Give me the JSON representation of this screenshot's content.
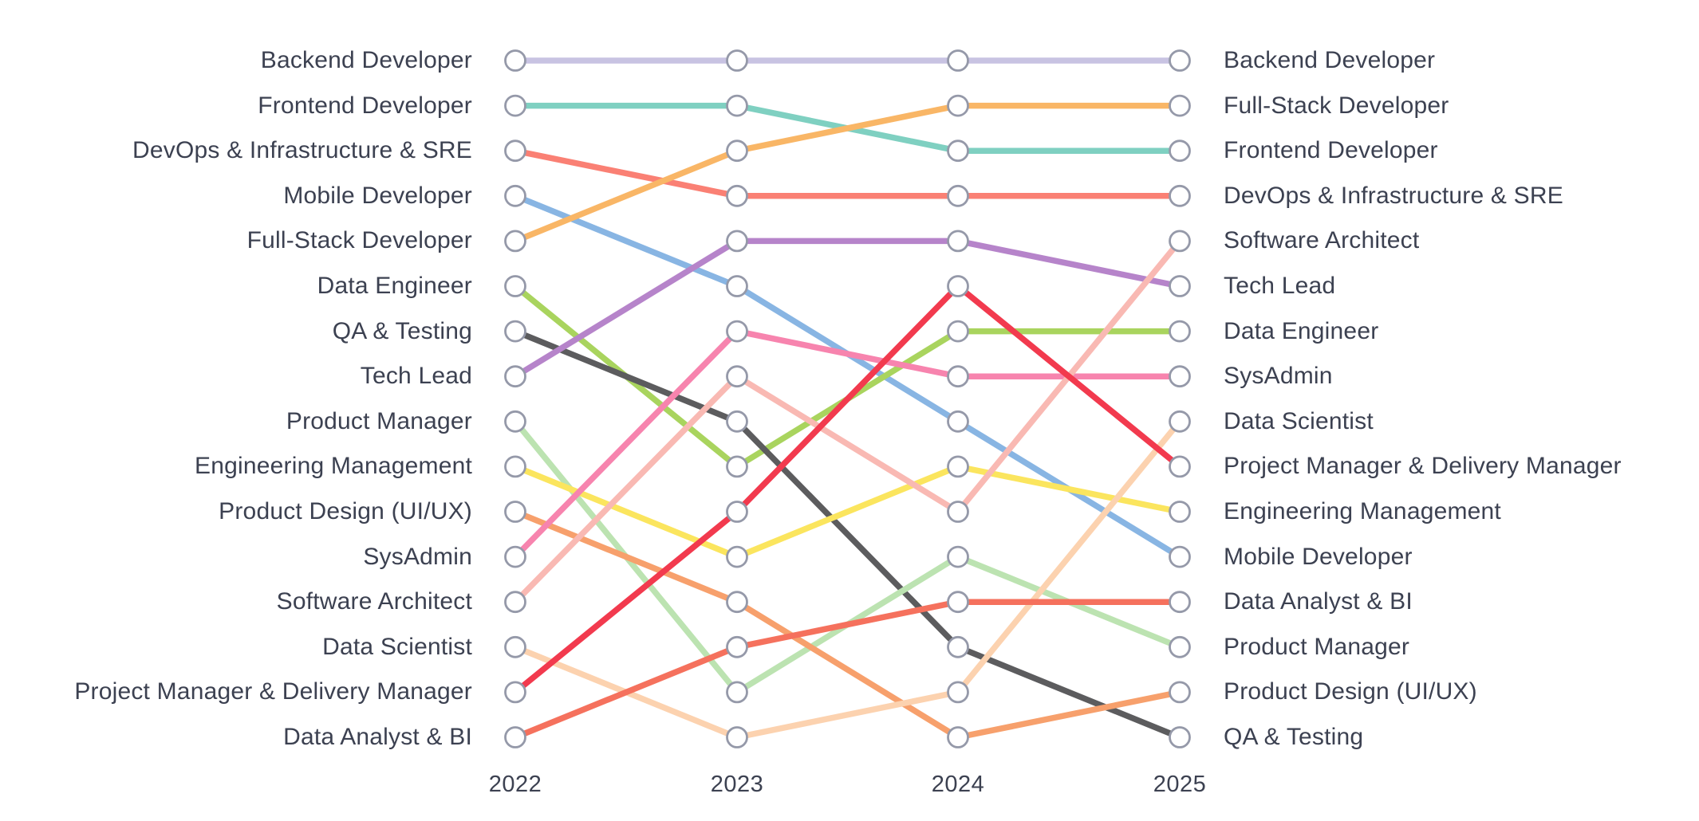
{
  "chart_data": {
    "type": "line",
    "subtype": "bump-rank-chart",
    "x": [
      "2022",
      "2023",
      "2024",
      "2025"
    ],
    "rank_axis": "rank 1 at top, rank 16 at bottom; left labels = 2022 ranking, right labels = 2025 ranking",
    "ylim": [
      1,
      16
    ],
    "grid": false,
    "legend": "none",
    "series": [
      {
        "name": "Backend Developer",
        "color": "#c8c3e2",
        "ranks": [
          1,
          1,
          1,
          1
        ]
      },
      {
        "name": "Frontend Developer",
        "color": "#7fd0c1",
        "ranks": [
          2,
          2,
          3,
          3
        ]
      },
      {
        "name": "DevOps & Infrastructure & SRE",
        "color": "#fa8074",
        "ranks": [
          3,
          4,
          4,
          4
        ]
      },
      {
        "name": "Mobile Developer",
        "color": "#88b5e3",
        "ranks": [
          4,
          6,
          9,
          12
        ]
      },
      {
        "name": "Full-Stack Developer",
        "color": "#f9b666",
        "ranks": [
          5,
          3,
          2,
          2
        ]
      },
      {
        "name": "Data Engineer",
        "color": "#a9d45e",
        "ranks": [
          6,
          10,
          7,
          7
        ]
      },
      {
        "name": "QA & Testing",
        "color": "#5c5c5e",
        "ranks": [
          7,
          9,
          14,
          16
        ]
      },
      {
        "name": "Tech Lead",
        "color": "#b684ca",
        "ranks": [
          8,
          5,
          5,
          6
        ]
      },
      {
        "name": "Product Manager",
        "color": "#bce3b1",
        "ranks": [
          9,
          15,
          12,
          14
        ]
      },
      {
        "name": "Engineering Management",
        "color": "#fbe55e",
        "ranks": [
          10,
          12,
          10,
          11
        ]
      },
      {
        "name": "Product Design (UI/UX)",
        "color": "#f7a06c",
        "ranks": [
          11,
          13,
          16,
          15
        ]
      },
      {
        "name": "SysAdmin",
        "color": "#f784ae",
        "ranks": [
          12,
          7,
          8,
          8
        ]
      },
      {
        "name": "Software Architect",
        "color": "#f9b9b3",
        "ranks": [
          13,
          8,
          11,
          5
        ]
      },
      {
        "name": "Data Scientist",
        "color": "#fcd2af",
        "ranks": [
          14,
          16,
          15,
          9
        ]
      },
      {
        "name": "Project Manager & Delivery Manager",
        "color": "#f23a4e",
        "ranks": [
          15,
          11,
          6,
          10
        ]
      },
      {
        "name": "Data Analyst & BI",
        "color": "#f5715d",
        "ranks": [
          16,
          14,
          13,
          13
        ]
      }
    ]
  },
  "styles": {
    "background": "#ffffff",
    "node_fill": "#ffffff",
    "node_stroke": "#9599a9",
    "text_color": "#3c4151"
  }
}
